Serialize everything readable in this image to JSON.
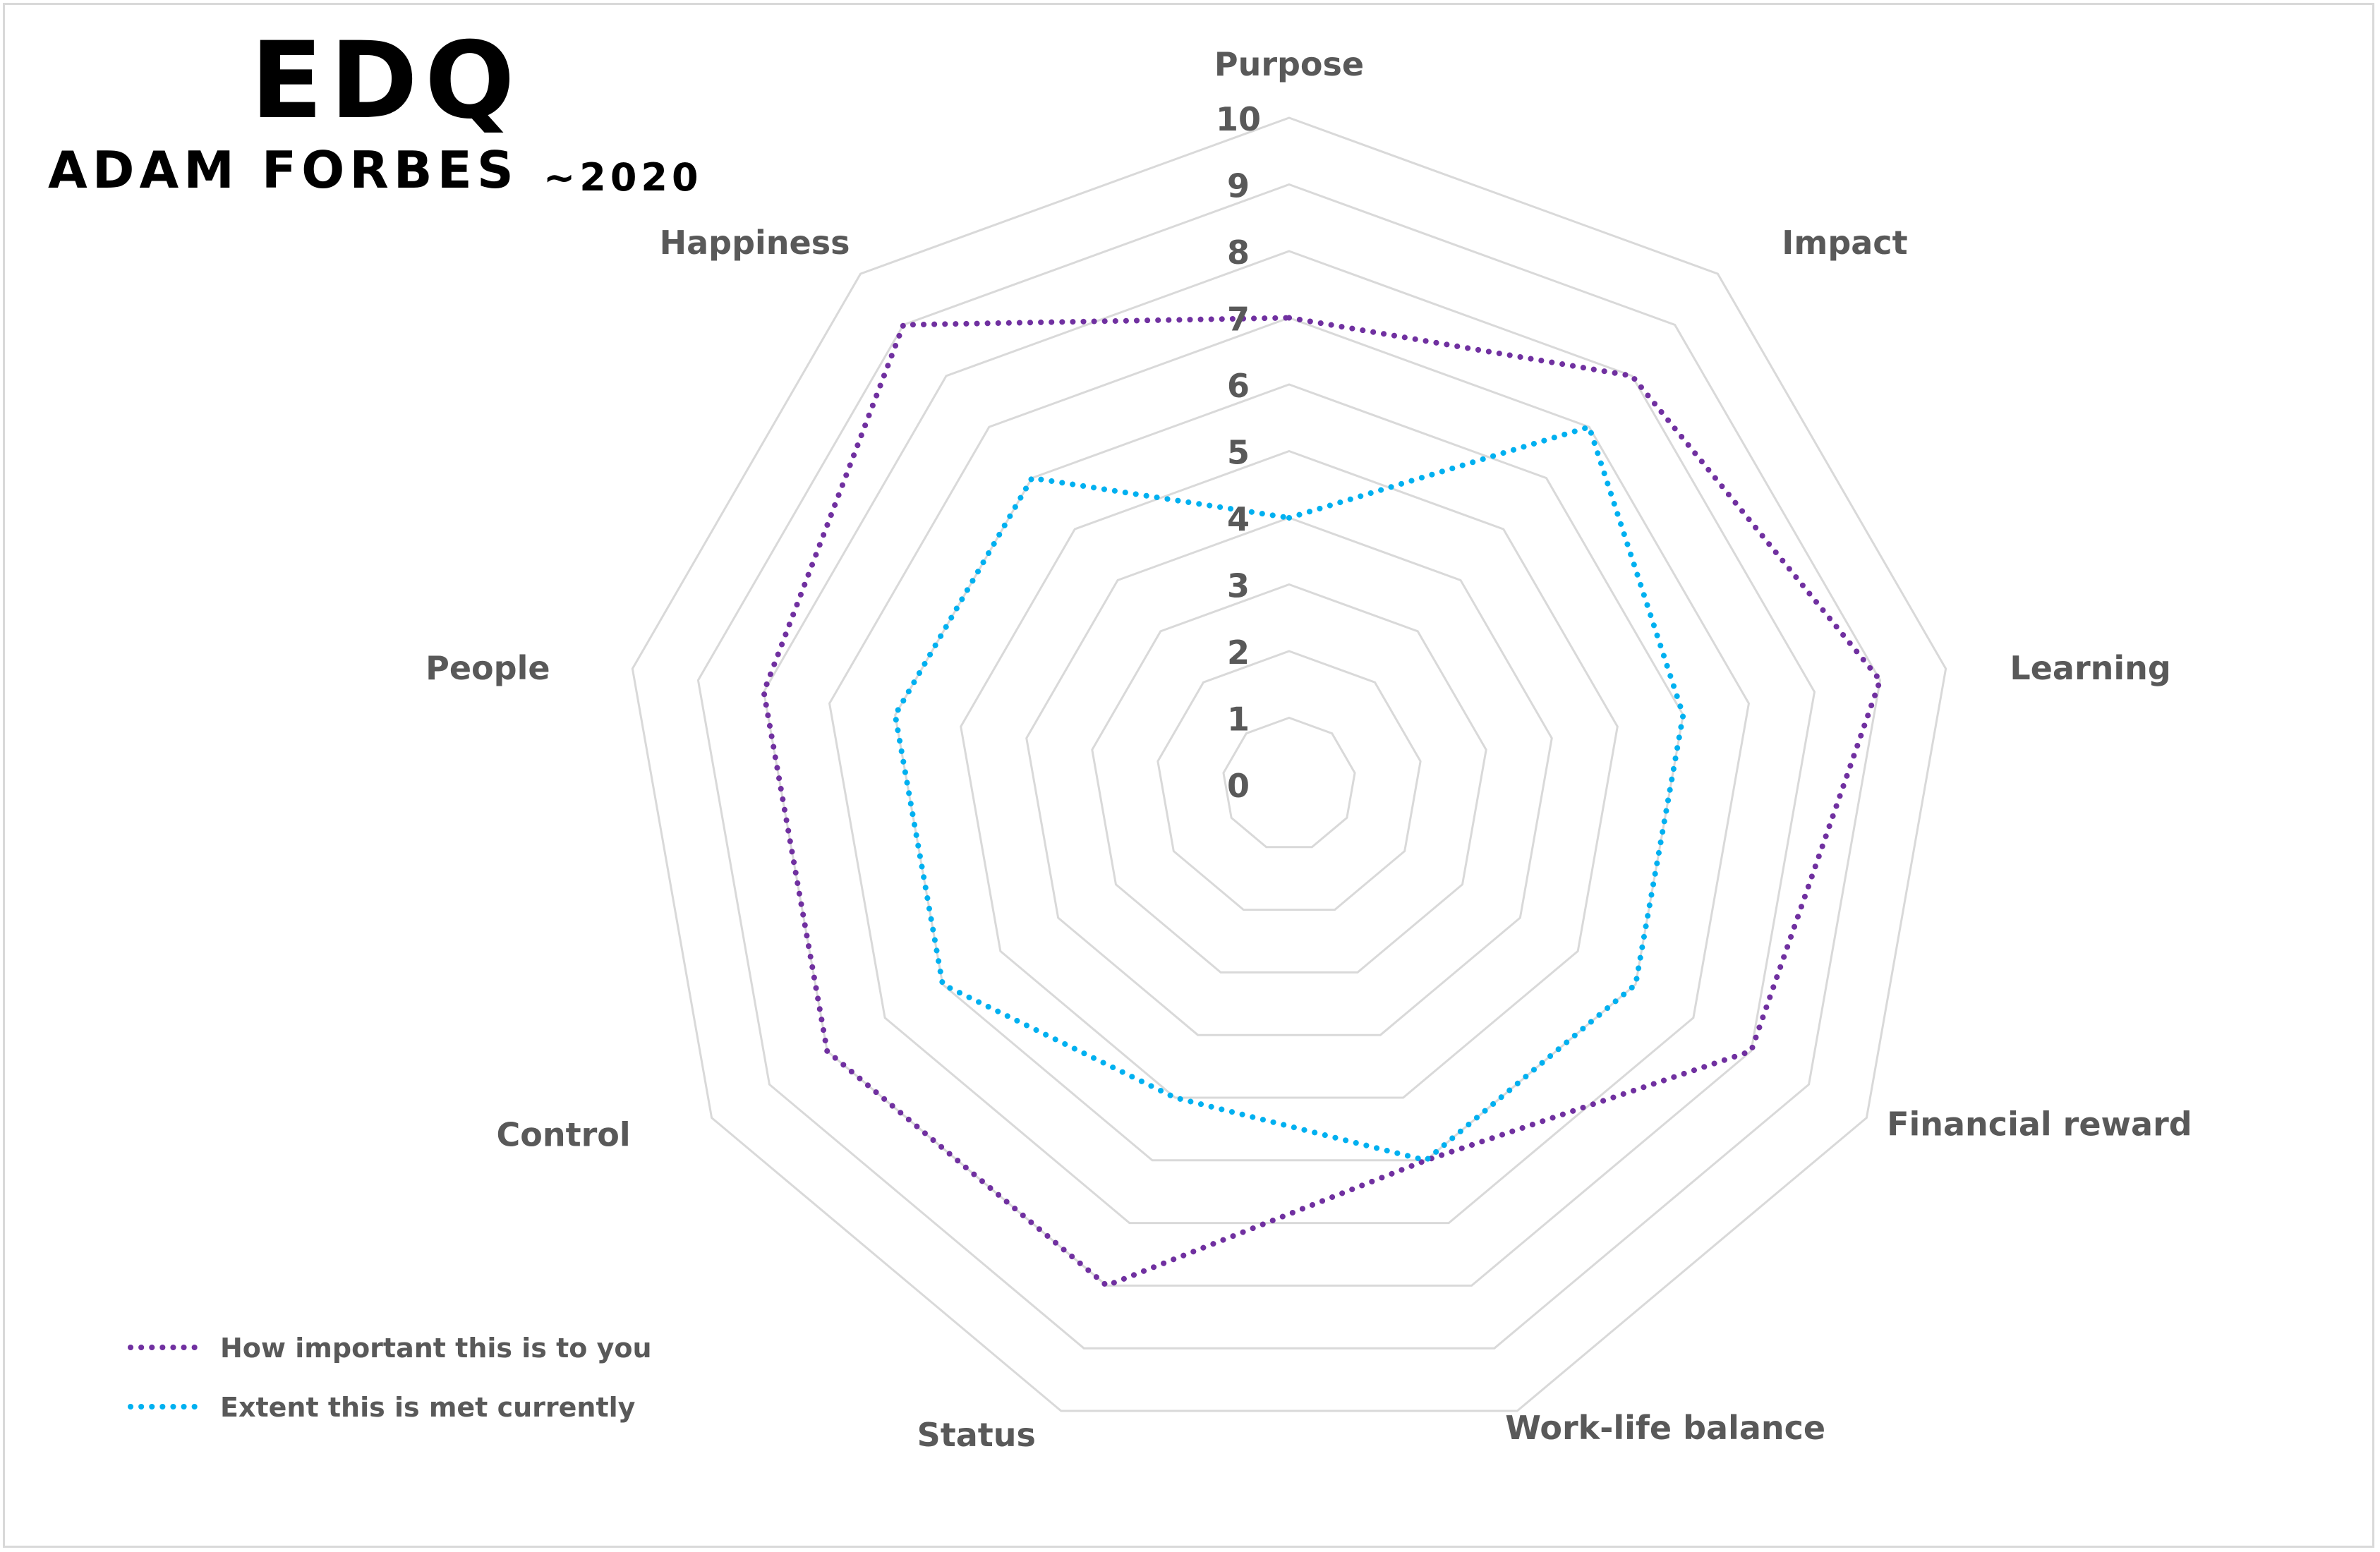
{
  "header": {
    "title": "EDQ",
    "subtitle": "ADAM FORBES",
    "year": "~2020"
  },
  "colors": {
    "important": "#7030a0",
    "current": "#00b0f0",
    "grid": "#d9d9d9",
    "label": "#595959"
  },
  "chart_data": {
    "type": "radar",
    "title": "",
    "categories": [
      "Purpose",
      "Impact",
      "Learning",
      "Financial reward",
      "Work-life balance",
      "Status",
      "Control",
      "People",
      "Happiness"
    ],
    "rlim": [
      0,
      10
    ],
    "ticks": [
      0,
      1,
      2,
      3,
      4,
      5,
      6,
      7,
      8,
      9,
      10
    ],
    "grid": true,
    "legend_position": "bottom-left",
    "series": [
      {
        "name": "How important this is to you",
        "values": [
          7,
          8,
          9,
          8,
          6,
          8,
          8,
          8,
          9
        ],
        "style": "dotted"
      },
      {
        "name": "Extent this is met currently",
        "values": [
          4,
          7,
          6,
          6,
          6,
          5,
          6,
          6,
          6
        ],
        "style": "dotted"
      }
    ]
  }
}
